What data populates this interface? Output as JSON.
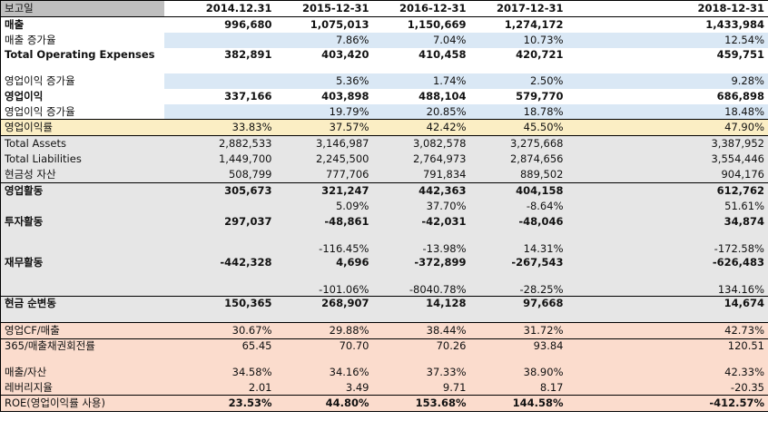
{
  "header": {
    "label": "보고일",
    "years": [
      "2014.12.31",
      "2015-12-31",
      "2016-12-31",
      "2017-12-31",
      "2018-12-31"
    ]
  },
  "rows": [
    {
      "label": "매출",
      "values": [
        "996,680",
        "1,075,013",
        "1,150,669",
        "1,274,172",
        "1,433,984"
      ]
    },
    {
      "label": "매출 증가율",
      "values": [
        "",
        "7.86%",
        "7.04%",
        "10.73%",
        "12.54%"
      ]
    },
    {
      "label": "Total Operating Expenses",
      "values": [
        "382,891",
        "403,420",
        "410,458",
        "420,721",
        "459,751"
      ]
    },
    {
      "label": "영업이익 증가율",
      "values": [
        "",
        "5.36%",
        "1.74%",
        "2.50%",
        "9.28%"
      ]
    },
    {
      "label": "영업이익",
      "values": [
        "337,166",
        "403,898",
        "488,104",
        "579,770",
        "686,898"
      ]
    },
    {
      "label": "영업이익 증가율",
      "values": [
        "",
        "19.79%",
        "20.85%",
        "18.78%",
        "18.48%"
      ]
    },
    {
      "label": "영업이익률",
      "values": [
        "33.83%",
        "37.57%",
        "42.42%",
        "45.50%",
        "47.90%"
      ]
    },
    {
      "label": "Total Assets",
      "values": [
        "2,882,533",
        "3,146,987",
        "3,082,578",
        "3,275,668",
        "3,387,952"
      ]
    },
    {
      "label": "Total Liabilities",
      "values": [
        "1,449,700",
        "2,245,500",
        "2,764,973",
        "2,874,656",
        "3,554,446"
      ]
    },
    {
      "label": "현금성 자산",
      "values": [
        "508,799",
        "777,706",
        "791,834",
        "889,502",
        "904,176"
      ]
    },
    {
      "label": "영업활동",
      "values": [
        "305,673",
        "321,247",
        "442,363",
        "404,158",
        "612,762"
      ]
    },
    {
      "label": "",
      "values": [
        "",
        "5.09%",
        "37.70%",
        "-8.64%",
        "51.61%"
      ]
    },
    {
      "label": "투자활동",
      "values": [
        "297,037",
        "-48,861",
        "-42,031",
        "-48,046",
        "34,874"
      ]
    },
    {
      "label": "",
      "values": [
        "",
        "-116.45%",
        "-13.98%",
        "14.31%",
        "-172.58%"
      ]
    },
    {
      "label": "재무활동",
      "values": [
        "-442,328",
        "4,696",
        "-372,899",
        "-267,543",
        "-626,483"
      ]
    },
    {
      "label": "",
      "values": [
        "",
        "-101.06%",
        "-8040.78%",
        "-28.25%",
        "134.16%"
      ]
    },
    {
      "label": "현금 순변동",
      "values": [
        "150,365",
        "268,907",
        "14,128",
        "97,668",
        "14,674"
      ]
    },
    {
      "label": "영업CF/매출",
      "values": [
        "30.67%",
        "29.88%",
        "38.44%",
        "31.72%",
        "42.73%"
      ]
    },
    {
      "label": "365/매출채권회전률",
      "values": [
        "65.45",
        "70.70",
        "70.26",
        "93.84",
        "120.51"
      ]
    },
    {
      "label": "매출/자산",
      "values": [
        "34.58%",
        "34.16%",
        "37.33%",
        "38.90%",
        "42.33%"
      ]
    },
    {
      "label": "레버리지율",
      "values": [
        "2.01",
        "3.49",
        "9.71",
        "8.17",
        "-20.35"
      ]
    },
    {
      "label": "ROE(영업이익률 사용)",
      "values": [
        "23.53%",
        "44.80%",
        "153.68%",
        "144.58%",
        "-412.57%"
      ]
    }
  ]
}
